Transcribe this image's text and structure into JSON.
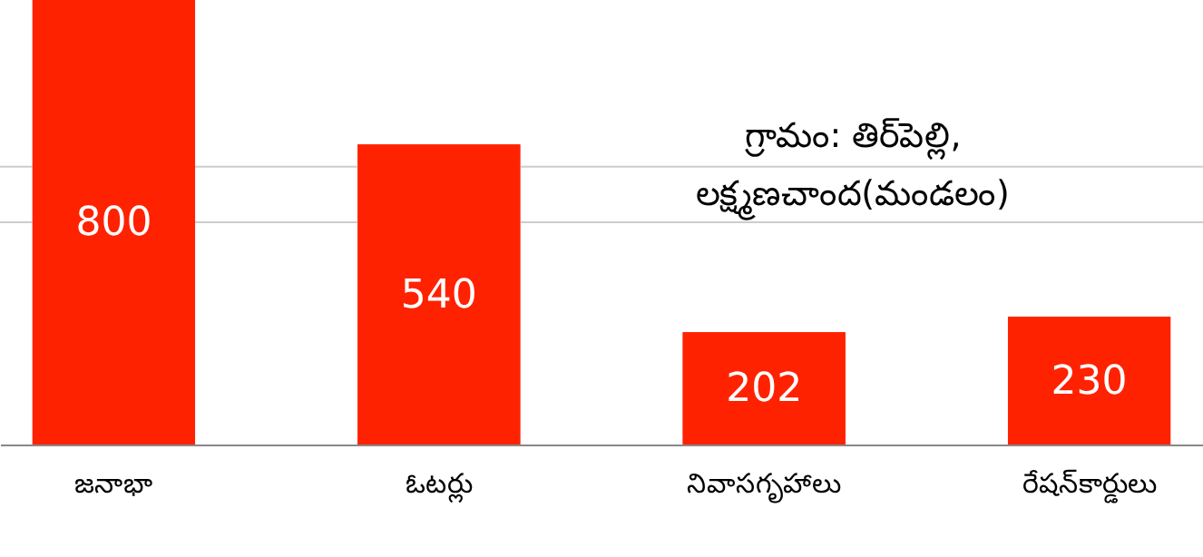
{
  "chart_data": {
    "type": "bar",
    "categories": [
      "జనాభా",
      "ఓటర్లు",
      "నివాసగృహాలు",
      "రేషన్‌కార్డులు"
    ],
    "values": [
      800,
      540,
      202,
      230
    ],
    "color": "#ff2200",
    "ylim": [
      0,
      800
    ],
    "ref_lines": [
      {
        "axis": "y",
        "value": 400,
        "color": "#cccccc"
      },
      {
        "axis": "y",
        "value": 500,
        "color": "#cccccc"
      }
    ],
    "tick_labels": "x",
    "data_labels": true,
    "annotations": [
      "గ్రామం: తిర్‌పెల్లి,\nలక్ష్మణచాంద(మండలం)"
    ]
  }
}
